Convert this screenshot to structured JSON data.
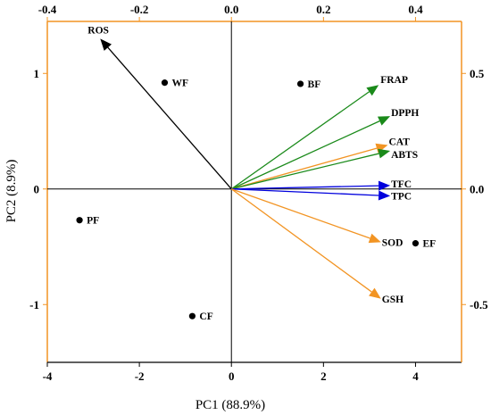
{
  "chart_data": {
    "type": "scatter",
    "subtype": "pca-biplot",
    "title": "",
    "xlabel": "PC1 (88.9%)",
    "ylabel": "PC2 (8.9%)",
    "xlim": [
      -4,
      5
    ],
    "ylim": [
      -1.5,
      1.45
    ],
    "x_ticks": [
      -4,
      -2,
      0,
      2,
      4
    ],
    "y_ticks": [
      -1,
      0,
      1
    ],
    "top_axis": {
      "lim": [
        -0.4,
        0.5
      ],
      "ticks": [
        -0.4,
        -0.2,
        0.0,
        0.2,
        0.4
      ],
      "tick_labels": [
        "-0.4",
        "-0.2",
        "0.0",
        "0.2",
        "0.4"
      ]
    },
    "right_axis": {
      "lim": [
        -0.75,
        0.725
      ],
      "ticks": [
        0.5,
        0.0,
        -0.5
      ],
      "tick_labels": [
        "0.5",
        "0.0",
        "-0.5"
      ],
      "color": "#f29423"
    },
    "grid": false,
    "scores": [
      {
        "label": "ROS",
        "x": -2.85,
        "y": 1.3
      },
      {
        "label": "WF",
        "x": -1.45,
        "y": 0.92
      },
      {
        "label": "BF",
        "x": 1.5,
        "y": 0.91
      },
      {
        "label": "PF",
        "x": -3.3,
        "y": -0.27
      },
      {
        "label": "CF",
        "x": -0.85,
        "y": -1.1
      },
      {
        "label": "EF",
        "x": 4.0,
        "y": -0.47
      }
    ],
    "loadings": [
      {
        "label": "ROS",
        "x": -0.285,
        "y": 0.65,
        "color": "#000000"
      },
      {
        "label": "FRAP",
        "x": 0.32,
        "y": 0.45,
        "color": "#1a8a1a"
      },
      {
        "label": "DPPH",
        "x": 0.345,
        "y": 0.315,
        "color": "#1a8a1a"
      },
      {
        "label": "CAT",
        "x": 0.34,
        "y": 0.19,
        "color": "#f29423"
      },
      {
        "label": "ABTS",
        "x": 0.345,
        "y": 0.165,
        "color": "#1a8a1a"
      },
      {
        "label": "TFC",
        "x": 0.345,
        "y": 0.015,
        "color": "#0000dd"
      },
      {
        "label": "TPC",
        "x": 0.345,
        "y": -0.03,
        "color": "#0000dd"
      },
      {
        "label": "SOD",
        "x": 0.325,
        "y": -0.23,
        "color": "#f29423"
      },
      {
        "label": "GSH",
        "x": 0.325,
        "y": -0.475,
        "color": "#f29423"
      }
    ]
  }
}
